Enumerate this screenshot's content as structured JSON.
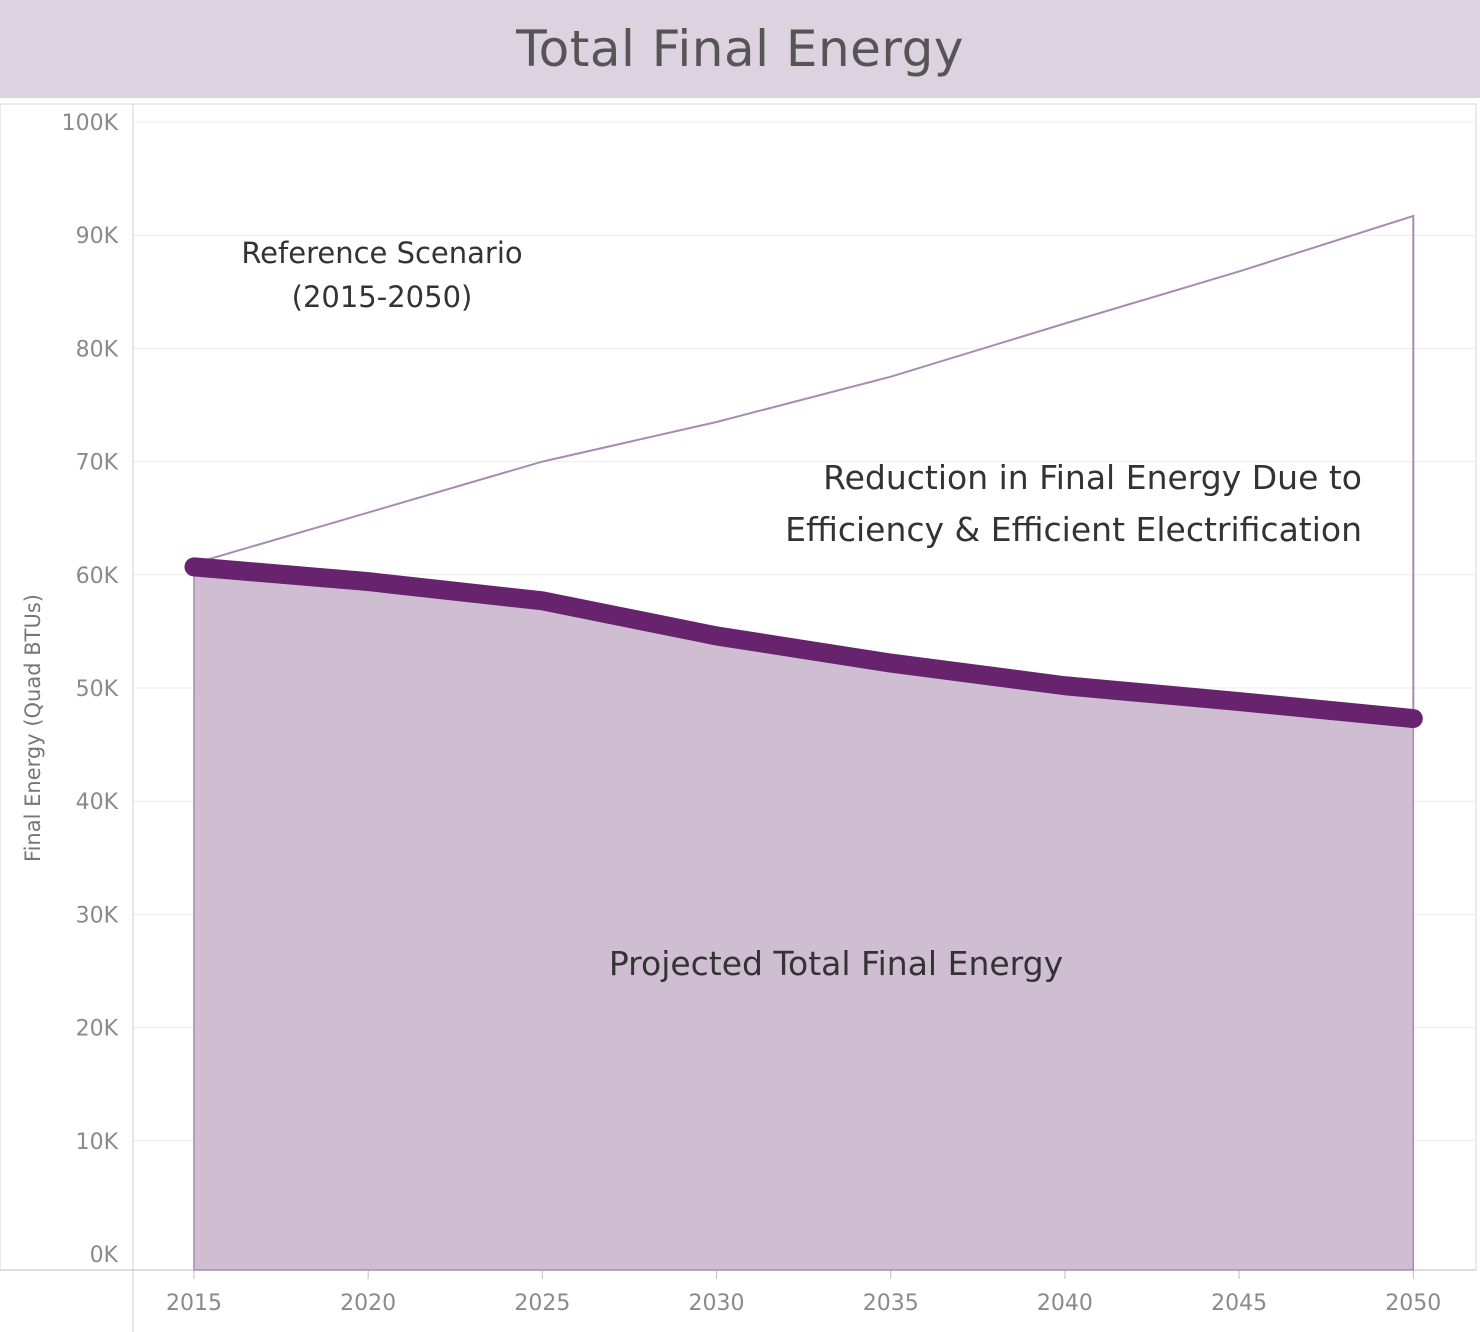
{
  "title": "Total Final Energy",
  "chart_data": {
    "type": "area",
    "title": "Total Final Energy",
    "ylabel": "Final Energy (Quad BTUs)",
    "xlabel": "",
    "x": [
      2015,
      2020,
      2025,
      2030,
      2035,
      2040,
      2045,
      2050
    ],
    "x_ticks": [
      "2015",
      "2020",
      "2025",
      "2030",
      "2035",
      "2040",
      "2045",
      "2050"
    ],
    "y_ticks": [
      "0K",
      "10K",
      "20K",
      "30K",
      "40K",
      "50K",
      "60K",
      "70K",
      "80K",
      "90K",
      "100K"
    ],
    "ylim": [
      0,
      100000
    ],
    "xlim": [
      2013.25,
      2051.8
    ],
    "grid": true,
    "series": [
      {
        "name": "Reference Scenario",
        "type": "line",
        "color": "#a88bb3",
        "values": [
          61000,
          65500,
          70000,
          73500,
          77500,
          82200,
          86800,
          91700
        ]
      },
      {
        "name": "Projected Total Final Energy",
        "type": "area",
        "color": "#68236f",
        "fill": "#cfbed2",
        "values": [
          60700,
          59400,
          57700,
          54600,
          52200,
          50200,
          48800,
          47300
        ]
      }
    ],
    "annotations": [
      {
        "lines": [
          "Reference Scenario",
          "(2015-2050)"
        ]
      },
      {
        "lines": [
          "Reduction in Final Energy Due to",
          "Efficiency & Efficient Electrification"
        ]
      },
      {
        "lines": [
          "Projected Total Final Energy"
        ]
      }
    ]
  }
}
